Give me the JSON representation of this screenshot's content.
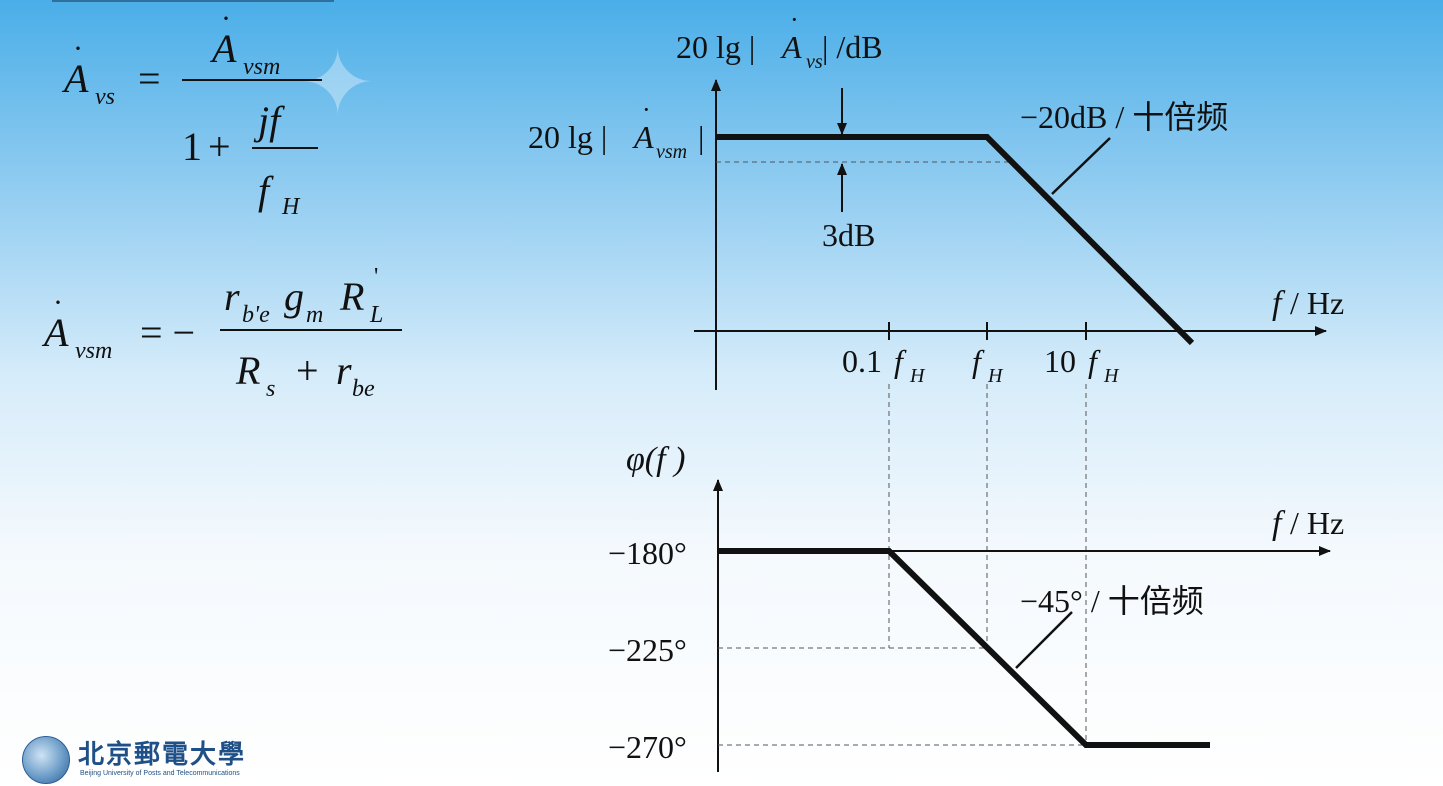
{
  "formula1": {
    "lhs_sym": "A",
    "lhs_sub": "vs",
    "num_sym": "A",
    "num_sub": "vsm",
    "den_one": "1",
    "den_plus": "+",
    "den_num": "jf",
    "den_den": "f",
    "den_den_sub": "H"
  },
  "formula2": {
    "lhs_sym": "A",
    "lhs_sub": "vsm",
    "eq": "= −",
    "num_r": "r",
    "num_r_sub": "b'e",
    "num_g": "g",
    "num_g_sub": "m",
    "num_R": "R",
    "num_R_sub": "L",
    "num_R_sup": "'",
    "den_R": "R",
    "den_R_sub": "s",
    "den_plus": "+",
    "den_r": "r",
    "den_r_sub": "be"
  },
  "magnitude_plot": {
    "y_label_pre": "20 lg | ",
    "y_label_sym": "A",
    "y_label_sub": "vs",
    "y_label_post": " | /dB",
    "level_pre": "20 lg | ",
    "level_sym": "A",
    "level_sub": "vsm",
    "level_post": " |",
    "slope_label": "−20dB / 十倍频",
    "drop_label": "3dB",
    "x_label_f": "f",
    "x_label_unit": " / Hz",
    "ticks": [
      {
        "pre": "0.1",
        "sym": "f",
        "sub": "H"
      },
      {
        "pre": "",
        "sym": "f",
        "sub": "H"
      },
      {
        "pre": "10",
        "sym": "f",
        "sub": "H"
      }
    ]
  },
  "phase_plot": {
    "y_label": "φ(f )",
    "x_label_f": "f",
    "x_label_unit": " / Hz",
    "slope_label": "−45° / 十倍频",
    "y_ticks": [
      "−180°",
      "−225°",
      "−270°"
    ]
  },
  "logo": {
    "name": "北京郵電大學",
    "english": "Beijing University of Posts and Telecommunications"
  }
}
